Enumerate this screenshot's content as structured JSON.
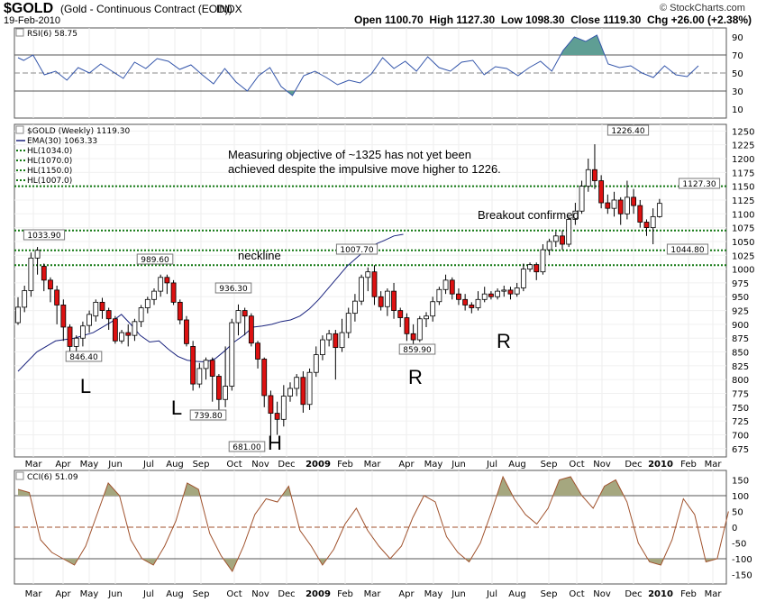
{
  "header": {
    "symbol": "$GOLD",
    "description": "(Gold - Continuous Contract (EOD))",
    "exchange": "INDX",
    "date": "19-Feb-2010",
    "open_label": "Open",
    "open": "1100.70",
    "high_label": "High",
    "high": "1127.30",
    "low_label": "Low",
    "low": "1098.30",
    "close_label": "Close",
    "close": "1119.30",
    "chg_label": "Chg",
    "chg": "+26.00 (+2.38%)",
    "brand": "© StockCharts.com"
  },
  "rsi_panel": {
    "legend": "RSI(6) 58.75",
    "value": 58.75,
    "ticks": [
      "90",
      "70",
      "50",
      "30",
      "10"
    ]
  },
  "cci_panel": {
    "legend": "CCI(6) 51.09",
    "value": 51.09,
    "ticks": [
      "150",
      "100",
      "50",
      "0",
      "-50",
      "-100",
      "-150"
    ]
  },
  "price_panel": {
    "legend": [
      "$GOLD (Weekly) 1119.30",
      "EMA(30) 1063.33",
      "HL(1034.0)",
      "HL(1070.0)",
      "HL(1150.0)",
      "HL(1007.0)"
    ],
    "ticks": [
      "1250",
      "1225",
      "1200",
      "1175",
      "1150",
      "1125",
      "1100",
      "1075",
      "1050",
      "1025",
      "1000",
      "975",
      "950",
      "925",
      "900",
      "875",
      "850",
      "825",
      "800",
      "775",
      "750",
      "725",
      "700",
      "675"
    ]
  },
  "annotations": {
    "objective_line1": "Measuring objective of ~1325 has not yet been",
    "objective_line2": "achieved despite the impulsive move higher to 1226.",
    "breakout": "Breakout confirmed",
    "neckline": "neckline",
    "pattern_letters": [
      "L",
      "L",
      "H",
      "R",
      "R"
    ]
  },
  "value_labels": [
    "1033.90",
    "846.40",
    "989.60",
    "739.80",
    "936.30",
    "681.00",
    "1007.70",
    "859.90",
    "1226.40",
    "1127.30",
    "1044.80"
  ],
  "x_axis": [
    "Mar",
    "Apr",
    "May",
    "Jun",
    "Jul",
    "Aug",
    "Sep",
    "Oct",
    "Nov",
    "Dec",
    "2009",
    "Feb",
    "Mar",
    "Apr",
    "May",
    "Jun",
    "Jul",
    "Aug",
    "Sep",
    "Oct",
    "Nov",
    "Dec",
    "2010",
    "Feb",
    "Mar"
  ],
  "colors": {
    "up": "#ffffff",
    "down": "#dd1111",
    "ema": "#1a237e",
    "hl": "#117711",
    "rsi_fill": "#5f9e94",
    "cci_fill": "#a5a77f",
    "cci_line": "#a0522d"
  },
  "chart_data": {
    "type": "candlestick",
    "title": "$GOLD (Weekly)",
    "y_range": [
      660,
      1262
    ],
    "horizontal_levels": [
      1034.0,
      1070.0,
      1150.0,
      1007.0
    ],
    "ema30": [
      [
        0,
        815
      ],
      [
        10,
        850
      ],
      [
        20,
        870
      ],
      [
        30,
        875
      ],
      [
        40,
        885
      ],
      [
        45,
        895
      ],
      [
        50,
        905
      ],
      [
        55,
        918
      ],
      [
        60,
        900
      ],
      [
        65,
        880
      ],
      [
        70,
        868
      ],
      [
        75,
        870
      ],
      [
        80,
        855
      ],
      [
        85,
        842
      ],
      [
        90,
        835
      ],
      [
        95,
        833
      ],
      [
        100,
        832
      ],
      [
        105,
        838
      ],
      [
        110,
        852
      ],
      [
        115,
        868
      ],
      [
        120,
        880
      ],
      [
        125,
        895
      ],
      [
        130,
        897
      ],
      [
        135,
        900
      ],
      [
        140,
        905
      ],
      [
        145,
        908
      ],
      [
        150,
        915
      ],
      [
        155,
        928
      ],
      [
        160,
        945
      ],
      [
        165,
        965
      ],
      [
        170,
        985
      ],
      [
        175,
        1005
      ],
      [
        180,
        1020
      ],
      [
        185,
        1035
      ],
      [
        190,
        1045
      ],
      [
        195,
        1052
      ],
      [
        200,
        1060
      ],
      [
        205,
        1063
      ]
    ],
    "candles": [
      [
        903,
        931,
        899,
        949
      ],
      [
        931,
        961,
        922,
        970
      ],
      [
        961,
        1020,
        950,
        1030
      ],
      [
        1020,
        1034,
        990,
        1040
      ],
      [
        1005,
        980,
        960,
        1010
      ],
      [
        980,
        964,
        940,
        985
      ],
      [
        962,
        935,
        900,
        970
      ],
      [
        935,
        895,
        870,
        945
      ],
      [
        895,
        860,
        846,
        900
      ],
      [
        860,
        875,
        845,
        880
      ],
      [
        875,
        897,
        860,
        905
      ],
      [
        898,
        918,
        885,
        925
      ],
      [
        915,
        940,
        905,
        945
      ],
      [
        940,
        925,
        910,
        948
      ],
      [
        925,
        910,
        890,
        930
      ],
      [
        910,
        870,
        865,
        915
      ],
      [
        870,
        885,
        865,
        890
      ],
      [
        885,
        880,
        860,
        900
      ],
      [
        880,
        905,
        870,
        910
      ],
      [
        905,
        930,
        895,
        935
      ],
      [
        930,
        945,
        920,
        950
      ],
      [
        945,
        960,
        935,
        965
      ],
      [
        960,
        985,
        950,
        990
      ],
      [
        985,
        975,
        955,
        990
      ],
      [
        975,
        940,
        935,
        980
      ],
      [
        940,
        908,
        900,
        945
      ],
      [
        908,
        865,
        860,
        915
      ],
      [
        860,
        792,
        780,
        870
      ],
      [
        792,
        820,
        785,
        830
      ],
      [
        820,
        835,
        800,
        840
      ],
      [
        835,
        806,
        760,
        840
      ],
      [
        806,
        764,
        740,
        810
      ],
      [
        764,
        788,
        750,
        860
      ],
      [
        788,
        903,
        780,
        910
      ],
      [
        903,
        925,
        880,
        936
      ],
      [
        925,
        915,
        880,
        930
      ],
      [
        915,
        866,
        860,
        920
      ],
      [
        866,
        837,
        820,
        870
      ],
      [
        837,
        771,
        750,
        840
      ],
      [
        771,
        739,
        681,
        780
      ],
      [
        739,
        728,
        700,
        760
      ],
      [
        728,
        770,
        715,
        790
      ],
      [
        770,
        784,
        760,
        795
      ],
      [
        784,
        804,
        770,
        810
      ],
      [
        804,
        755,
        740,
        815
      ],
      [
        755,
        813,
        745,
        820
      ],
      [
        813,
        845,
        805,
        860
      ],
      [
        845,
        872,
        835,
        880
      ],
      [
        872,
        883,
        860,
        890
      ],
      [
        883,
        858,
        800,
        890
      ],
      [
        858,
        885,
        850,
        910
      ],
      [
        885,
        920,
        875,
        930
      ],
      [
        920,
        942,
        905,
        955
      ],
      [
        942,
        985,
        935,
        990
      ],
      [
        985,
        995,
        960,
        1003
      ],
      [
        995,
        950,
        935,
        1007
      ],
      [
        950,
        932,
        925,
        960
      ],
      [
        932,
        960,
        915,
        965
      ],
      [
        960,
        925,
        910,
        975
      ],
      [
        925,
        912,
        895,
        930
      ],
      [
        912,
        883,
        870,
        920
      ],
      [
        883,
        872,
        859,
        900
      ],
      [
        872,
        910,
        868,
        915
      ],
      [
        910,
        915,
        895,
        922
      ],
      [
        915,
        941,
        905,
        950
      ],
      [
        941,
        963,
        935,
        968
      ],
      [
        963,
        980,
        955,
        990
      ],
      [
        980,
        955,
        945,
        985
      ],
      [
        955,
        945,
        935,
        965
      ],
      [
        945,
        935,
        925,
        955
      ],
      [
        935,
        930,
        920,
        940
      ],
      [
        930,
        945,
        925,
        960
      ],
      [
        945,
        955,
        940,
        968
      ],
      [
        955,
        950,
        945,
        960
      ],
      [
        950,
        960,
        945,
        965
      ],
      [
        960,
        962,
        950,
        970
      ],
      [
        962,
        955,
        945,
        968
      ],
      [
        955,
        966,
        950,
        975
      ],
      [
        966,
        1000,
        960,
        1010
      ],
      [
        1000,
        1008,
        995,
        1012
      ],
      [
        1008,
        995,
        980,
        1012
      ],
      [
        995,
        1035,
        990,
        1045
      ],
      [
        1035,
        1050,
        1025,
        1055
      ],
      [
        1050,
        1060,
        1040,
        1068
      ],
      [
        1060,
        1045,
        1035,
        1070
      ],
      [
        1045,
        1090,
        1040,
        1095
      ],
      [
        1090,
        1105,
        1080,
        1120
      ],
      [
        1105,
        1150,
        1100,
        1160
      ],
      [
        1150,
        1180,
        1140,
        1200
      ],
      [
        1180,
        1160,
        1145,
        1226
      ],
      [
        1160,
        1120,
        1110,
        1170
      ],
      [
        1120,
        1110,
        1100,
        1135
      ],
      [
        1110,
        1125,
        1095,
        1140
      ],
      [
        1125,
        1100,
        1080,
        1130
      ],
      [
        1100,
        1130,
        1090,
        1160
      ],
      [
        1130,
        1115,
        1100,
        1145
      ],
      [
        1115,
        1085,
        1075,
        1125
      ],
      [
        1085,
        1075,
        1060,
        1090
      ],
      [
        1075,
        1095,
        1045,
        1110
      ],
      [
        1095,
        1119,
        1093,
        1127
      ]
    ],
    "rsi": [
      [
        0,
        67
      ],
      [
        3,
        64
      ],
      [
        8,
        70
      ],
      [
        14,
        48
      ],
      [
        20,
        52
      ],
      [
        26,
        42
      ],
      [
        32,
        56
      ],
      [
        38,
        50
      ],
      [
        44,
        60
      ],
      [
        50,
        52
      ],
      [
        56,
        44
      ],
      [
        62,
        62
      ],
      [
        68,
        55
      ],
      [
        74,
        66
      ],
      [
        80,
        63
      ],
      [
        86,
        54
      ],
      [
        92,
        59
      ],
      [
        98,
        48
      ],
      [
        104,
        38
      ],
      [
        110,
        55
      ],
      [
        116,
        40
      ],
      [
        122,
        30
      ],
      [
        128,
        47
      ],
      [
        134,
        56
      ],
      [
        140,
        35
      ],
      [
        146,
        25
      ],
      [
        152,
        47
      ],
      [
        158,
        52
      ],
      [
        164,
        45
      ],
      [
        170,
        37
      ],
      [
        176,
        42
      ],
      [
        182,
        39
      ],
      [
        188,
        49
      ],
      [
        194,
        67
      ],
      [
        200,
        55
      ],
      [
        206,
        63
      ],
      [
        212,
        52
      ],
      [
        218,
        68
      ],
      [
        224,
        56
      ],
      [
        230,
        52
      ],
      [
        236,
        62
      ],
      [
        242,
        64
      ],
      [
        248,
        48
      ],
      [
        254,
        57
      ],
      [
        260,
        55
      ],
      [
        266,
        47
      ],
      [
        272,
        56
      ],
      [
        278,
        63
      ],
      [
        284,
        52
      ],
      [
        290,
        75
      ],
      [
        296,
        90
      ],
      [
        302,
        85
      ],
      [
        308,
        92
      ],
      [
        314,
        60
      ],
      [
        320,
        56
      ],
      [
        326,
        58
      ],
      [
        332,
        50
      ],
      [
        338,
        45
      ],
      [
        344,
        58
      ],
      [
        350,
        48
      ],
      [
        356,
        46
      ],
      [
        362,
        58
      ]
    ],
    "cci": [
      [
        0,
        120
      ],
      [
        6,
        110
      ],
      [
        12,
        -40
      ],
      [
        18,
        -80
      ],
      [
        24,
        -100
      ],
      [
        30,
        -120
      ],
      [
        36,
        -60
      ],
      [
        42,
        40
      ],
      [
        48,
        140
      ],
      [
        54,
        100
      ],
      [
        60,
        -40
      ],
      [
        66,
        -100
      ],
      [
        72,
        -120
      ],
      [
        78,
        -60
      ],
      [
        84,
        20
      ],
      [
        90,
        140
      ],
      [
        96,
        120
      ],
      [
        102,
        -20
      ],
      [
        108,
        -90
      ],
      [
        114,
        -140
      ],
      [
        120,
        -60
      ],
      [
        126,
        40
      ],
      [
        132,
        90
      ],
      [
        138,
        80
      ],
      [
        144,
        130
      ],
      [
        150,
        -10
      ],
      [
        156,
        -60
      ],
      [
        162,
        -120
      ],
      [
        168,
        -70
      ],
      [
        174,
        10
      ],
      [
        180,
        60
      ],
      [
        186,
        -10
      ],
      [
        192,
        -60
      ],
      [
        198,
        -100
      ],
      [
        204,
        -60
      ],
      [
        210,
        30
      ],
      [
        216,
        100
      ],
      [
        222,
        80
      ],
      [
        228,
        -30
      ],
      [
        234,
        -80
      ],
      [
        240,
        -110
      ],
      [
        246,
        -50
      ],
      [
        252,
        50
      ],
      [
        258,
        160
      ],
      [
        264,
        90
      ],
      [
        270,
        40
      ],
      [
        276,
        10
      ],
      [
        282,
        60
      ],
      [
        288,
        150
      ],
      [
        294,
        160
      ],
      [
        300,
        100
      ],
      [
        306,
        60
      ],
      [
        312,
        130
      ],
      [
        318,
        150
      ],
      [
        324,
        80
      ],
      [
        330,
        -50
      ],
      [
        336,
        -110
      ],
      [
        342,
        -120
      ],
      [
        348,
        -40
      ],
      [
        354,
        90
      ],
      [
        360,
        40
      ],
      [
        366,
        -110
      ],
      [
        372,
        -100
      ],
      [
        378,
        50
      ]
    ]
  }
}
